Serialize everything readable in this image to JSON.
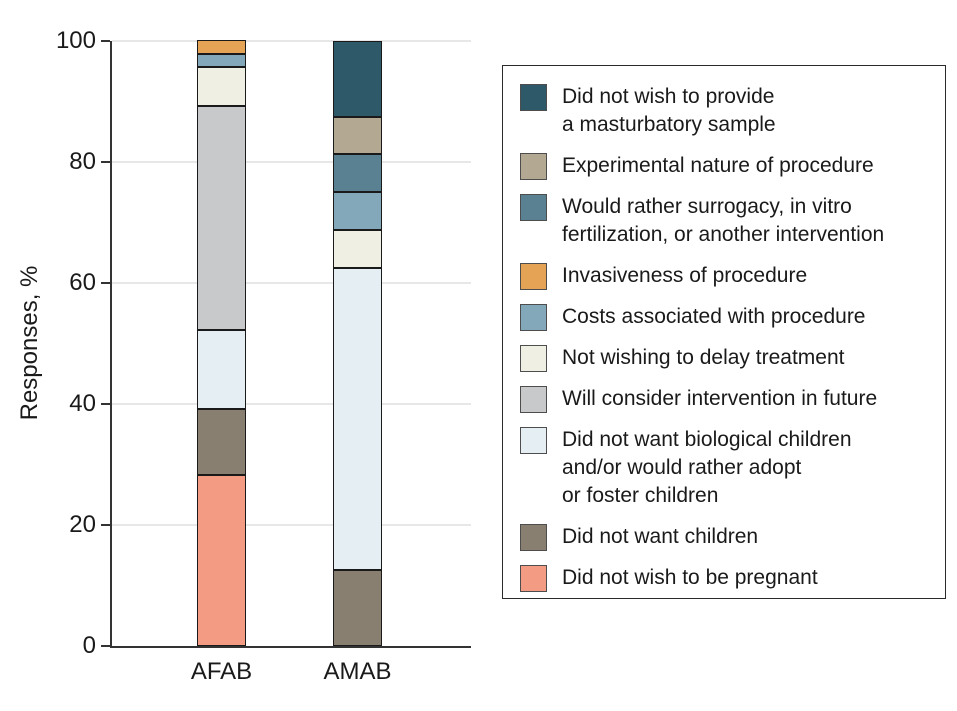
{
  "figure": {
    "ylabel": "Responses, %",
    "axis_color": "#333333",
    "grid_color": "#e7e7e7",
    "text_color": "#1a1a1a"
  },
  "chart_data": {
    "type": "bar",
    "stacked": true,
    "title": "",
    "xlabel": "",
    "ylabel": "Responses, %",
    "categories": [
      "AFAB",
      "AMAB"
    ],
    "ylim": [
      0,
      100
    ],
    "yticks": [
      0,
      20,
      40,
      60,
      80,
      100
    ],
    "grid": "horizontal",
    "legend_position": "right",
    "series": [
      {
        "name": "Did not wish to be pregnant",
        "label_lines": [
          "Did not wish to be pregnant"
        ],
        "color": "#F49B84",
        "values": [
          28.3,
          0
        ]
      },
      {
        "name": "Did not want children",
        "label_lines": [
          "Did not want children"
        ],
        "color": "#897F71",
        "values": [
          10.9,
          12.5
        ]
      },
      {
        "name": "Did not want biological children and/or would rather adopt or foster children",
        "label_lines": [
          "Did not want biological children",
          "and/or would rather adopt",
          "or foster children"
        ],
        "color": "#E5EEF2",
        "values": [
          13.0,
          50.0
        ]
      },
      {
        "name": "Will consider intervention in future",
        "label_lines": [
          "Will consider intervention in future"
        ],
        "color": "#C8C9CB",
        "values": [
          37.0,
          0
        ]
      },
      {
        "name": "Not wishing to delay treatment",
        "label_lines": [
          "Not wishing to delay treatment"
        ],
        "color": "#EFEFE3",
        "values": [
          6.5,
          6.25
        ]
      },
      {
        "name": "Costs associated with procedure",
        "label_lines": [
          "Costs associated with procedure"
        ],
        "color": "#83A8BA",
        "values": [
          2.2,
          6.25
        ]
      },
      {
        "name": "Invasiveness of procedure",
        "label_lines": [
          "Invasiveness of procedure"
        ],
        "color": "#E4A355",
        "values": [
          2.2,
          0
        ]
      },
      {
        "name": "Would rather surrogacy, in vitro fertilization, or another intervention",
        "label_lines": [
          "Would rather surrogacy, in vitro",
          "fertilization, or another intervention"
        ],
        "color": "#5A8191",
        "values": [
          0,
          6.25
        ]
      },
      {
        "name": "Experimental nature of procedure",
        "label_lines": [
          "Experimental nature of procedure"
        ],
        "color": "#B3A993",
        "values": [
          0,
          6.25
        ]
      },
      {
        "name": "Did not wish to provide a masturbatory sample",
        "label_lines": [
          "Did not wish to provide",
          "a masturbatory sample"
        ],
        "color": "#2E5968",
        "values": [
          0,
          12.5
        ]
      }
    ]
  }
}
